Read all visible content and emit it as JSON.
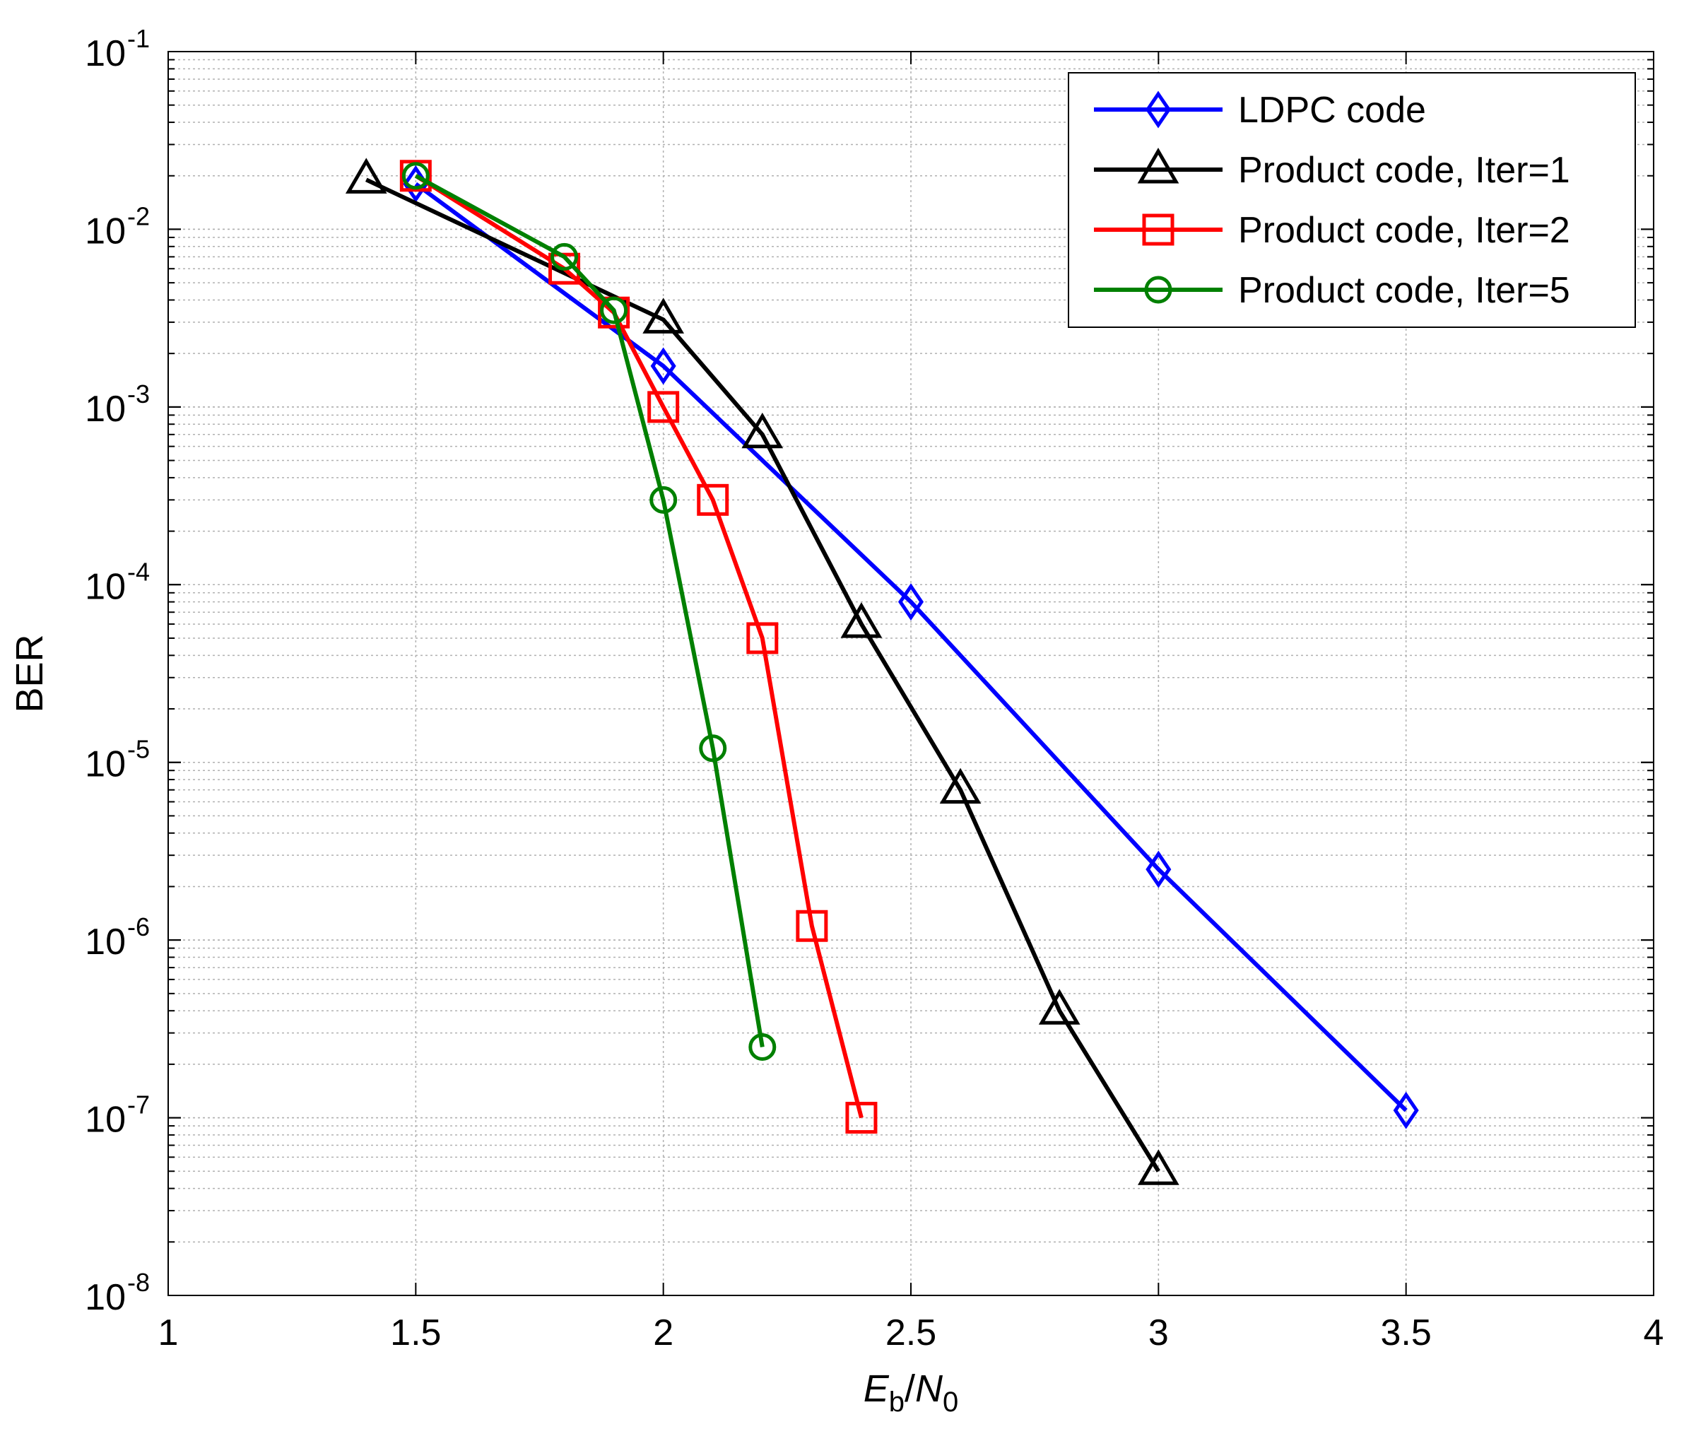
{
  "chart_data": {
    "type": "line",
    "title": "",
    "xlabel": {
      "main": "E",
      "sub": "b",
      "sep": "/",
      "main2": "N",
      "sub2": "0"
    },
    "ylabel": "BER",
    "xlim": [
      1,
      4
    ],
    "ylim": [
      1e-08,
      0.1
    ],
    "yscale": "log",
    "grid": true,
    "legend_position": "top-right",
    "x_ticks": [
      1,
      1.5,
      2,
      2.5,
      3,
      3.5,
      4
    ],
    "x_tick_labels": [
      "1",
      "1.5",
      "2",
      "2.5",
      "3",
      "3.5",
      "4"
    ],
    "y_ticks": [
      {
        "base": "10",
        "exp": "-1",
        "value": 0.1
      },
      {
        "base": "10",
        "exp": "-2",
        "value": 0.01
      },
      {
        "base": "10",
        "exp": "-3",
        "value": 0.001
      },
      {
        "base": "10",
        "exp": "-4",
        "value": 0.0001
      },
      {
        "base": "10",
        "exp": "-5",
        "value": 1e-05
      },
      {
        "base": "10",
        "exp": "-6",
        "value": 1e-06
      },
      {
        "base": "10",
        "exp": "-7",
        "value": 1e-07
      },
      {
        "base": "10",
        "exp": "-8",
        "value": 1e-08
      }
    ],
    "series": [
      {
        "name": "LDPC code",
        "color": "#0000ff",
        "marker": "diamond",
        "x": [
          1.5,
          2.0,
          2.5,
          3.0,
          3.5
        ],
        "y": [
          0.018,
          0.0017,
          8e-05,
          2.5e-06,
          1.1e-07
        ]
      },
      {
        "name": "Product code, Iter=1",
        "color": "#000000",
        "marker": "triangle",
        "x": [
          1.4,
          2.0,
          2.2,
          2.4,
          2.6,
          2.8,
          3.0
        ],
        "y": [
          0.019,
          0.0031,
          0.0007,
          6e-05,
          7e-06,
          4e-07,
          5e-08
        ]
      },
      {
        "name": "Product code, Iter=2",
        "color": "#ff0000",
        "marker": "square",
        "x": [
          1.5,
          1.8,
          1.9,
          2.0,
          2.1,
          2.2,
          2.3,
          2.4
        ],
        "y": [
          0.02,
          0.006,
          0.0034,
          0.001,
          0.0003,
          5e-05,
          1.2e-06,
          1e-07
        ]
      },
      {
        "name": "Product code, Iter=5",
        "color": "#008000",
        "marker": "circle",
        "x": [
          1.5,
          1.8,
          1.9,
          2.0,
          2.1,
          2.2
        ],
        "y": [
          0.02,
          0.007,
          0.0035,
          0.0003,
          1.2e-05,
          2.5e-07
        ]
      }
    ]
  }
}
